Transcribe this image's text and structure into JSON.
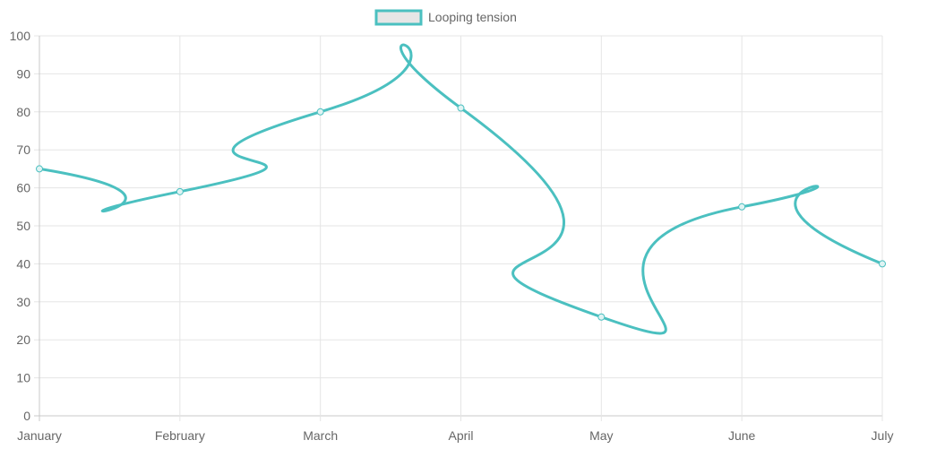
{
  "chart_data": {
    "type": "line",
    "title": "",
    "xlabel": "",
    "ylabel": "",
    "categories": [
      "January",
      "February",
      "March",
      "April",
      "May",
      "June",
      "July"
    ],
    "ylim": [
      0,
      100
    ],
    "yticks": [
      0,
      10,
      20,
      30,
      40,
      50,
      60,
      70,
      80,
      90,
      100
    ],
    "grid": true,
    "legend_position": "top",
    "series": [
      {
        "name": "Looping tension",
        "values": [
          65,
          59,
          80,
          81,
          26,
          55,
          40
        ],
        "border_color": "#4bc0c0",
        "fill_color": "#e6e6e6"
      }
    ]
  }
}
